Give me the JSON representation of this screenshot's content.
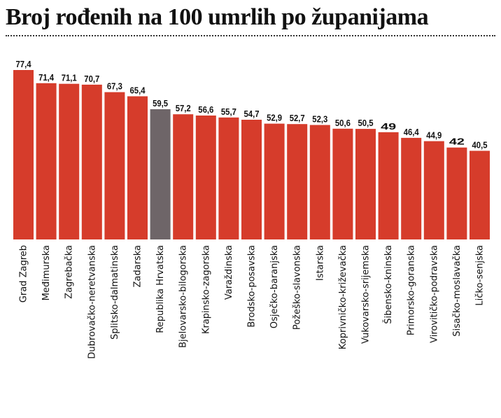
{
  "title": "Broj rođenih na 100 umrlih po županijama",
  "colors": {
    "bar": "#d63c2b",
    "highlight": "#6e6568",
    "text": "#111111"
  },
  "chart_data": {
    "type": "bar",
    "title": "Broj rođenih na 100 umrlih po županijama",
    "categories": [
      "Grad Zagreb",
      "Međimurska",
      "Zagrebačka",
      "Dubrovačko-neretvanska",
      "Splitsko-dalmatinska",
      "Zadarska",
      "Republika Hrvatska",
      "Bjelovarsko-bilogorska",
      "Krapinsko-zagorska",
      "Varaždinska",
      "Brodsko-posavska",
      "Osječko-baranjska",
      "Požeško-slavonska",
      "Istarska",
      "Koprivničko-križevačka",
      "Vukovarsko-srijemska",
      "Šibensko-kninska",
      "Primorsko-goranska",
      "Virovitičko-podravska",
      "Sisačko-moslavačka",
      "Ličko-senjska"
    ],
    "values": [
      77.4,
      71.4,
      71.1,
      70.7,
      67.3,
      65.4,
      59.5,
      57.2,
      56.6,
      55.7,
      54.7,
      52.9,
      52.7,
      52.3,
      50.6,
      50.5,
      49,
      46.4,
      44.9,
      42,
      40.5
    ],
    "value_labels": [
      "77,4",
      "71,4",
      "71,1",
      "70,7",
      "67,3",
      "65,4",
      "59,5",
      "57,2",
      "56,6",
      "55,7",
      "54,7",
      "52,9",
      "52,7",
      "52,3",
      "50,6",
      "50,5",
      "49",
      "46,4",
      "44,9",
      "42",
      "40,5"
    ],
    "highlight_category": "Republika Hrvatska",
    "xlabel": "",
    "ylabel": "",
    "ylim": [
      0,
      80
    ],
    "grid": false,
    "legend": "none"
  }
}
